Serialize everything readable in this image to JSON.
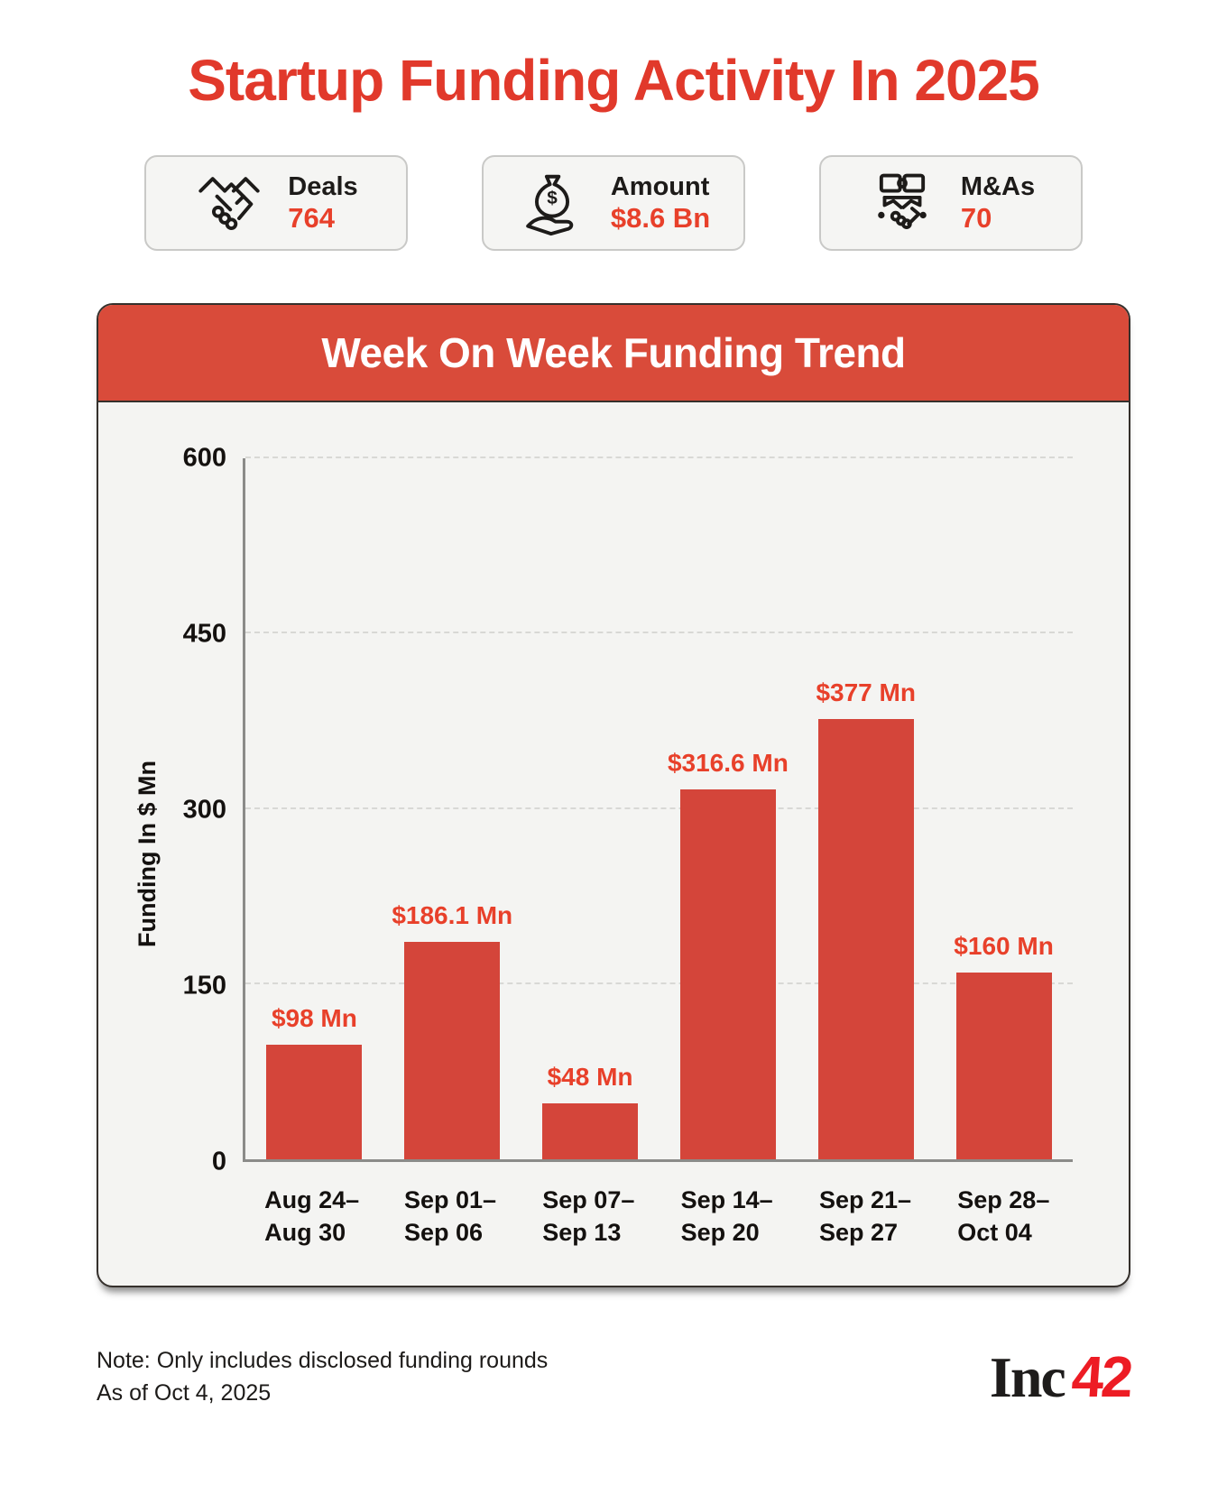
{
  "page": {
    "title": "Startup Funding Activity In 2025"
  },
  "stats": [
    {
      "icon": "handshake-icon",
      "label": "Deals",
      "value": "764"
    },
    {
      "icon": "money-bag-hand-icon",
      "label": "Amount",
      "value": "$8.6 Bn"
    },
    {
      "icon": "merger-handshake-icon",
      "label": "M&As",
      "value": "70"
    }
  ],
  "chart": {
    "header": "Week On Week Funding Trend"
  },
  "chart_data": {
    "type": "bar",
    "title": "Week On Week Funding Trend",
    "categories": [
      "Aug 24–\nAug 30",
      "Sep 01–\nSep 06",
      "Sep 07–\nSep 13",
      "Sep 14–\nSep 20",
      "Sep 21–\nSep 27",
      "Sep 28–\nOct 04"
    ],
    "values": [
      98,
      186.1,
      48,
      316.6,
      377,
      160
    ],
    "labels": [
      "$98 Mn",
      "$186.1 Mn",
      "$48 Mn",
      "$316.6 Mn",
      "$377 Mn",
      "$160 Mn"
    ],
    "xlabel": "",
    "ylabel": "Funding In $ Mn",
    "yticks": [
      0,
      150,
      300,
      450,
      600
    ],
    "ylim": [
      0,
      600
    ],
    "grid": "horizontal-dashed",
    "legend": "none",
    "bar_color": "#d4453a",
    "label_color": "#e8402a"
  },
  "footer": {
    "note_line1": "Note: Only includes disclosed funding rounds",
    "note_line2": "As of Oct 4, 2025",
    "logo_black": "Inc",
    "logo_red": "42"
  },
  "colors": {
    "title_red": "#e1392b",
    "header_red": "#d94b3a",
    "bar_red": "#d4453a",
    "value_red": "#e8402a",
    "panel_bg": "#f4f4f2",
    "card_bg": "#f5f5f3",
    "text_dark": "#1d1b19",
    "logo_red": "#ed1c24"
  }
}
